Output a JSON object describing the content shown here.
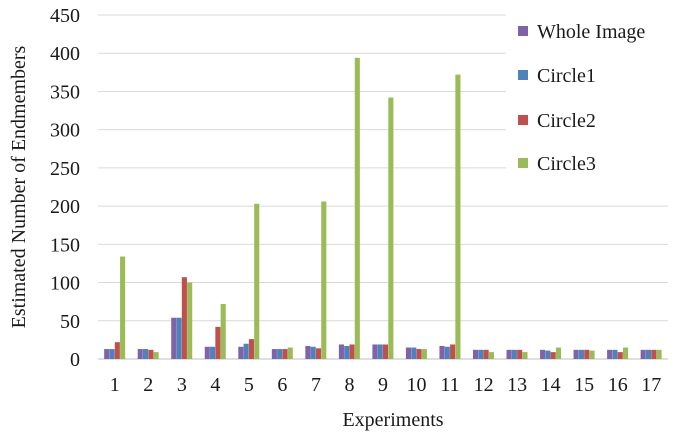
{
  "chart_data": {
    "type": "bar",
    "title": "",
    "xlabel": "Experiments",
    "ylabel": "Estimated Number of Endmembers",
    "ylim": [
      0,
      450
    ],
    "yticks": [
      0,
      50,
      100,
      150,
      200,
      250,
      300,
      350,
      400,
      450
    ],
    "grid": "horizontal",
    "legend_position": "right",
    "categories": [
      "1",
      "2",
      "3",
      "4",
      "5",
      "6",
      "7",
      "8",
      "9",
      "10",
      "11",
      "12",
      "13",
      "14",
      "15",
      "16",
      "17"
    ],
    "series": [
      {
        "name": "Whole Image",
        "color": "#7f63a8",
        "values": [
          13,
          13,
          54,
          16,
          16,
          13,
          17,
          19,
          19,
          15,
          17,
          12,
          12,
          12,
          12,
          12,
          12
        ]
      },
      {
        "name": "Circle1",
        "color": "#4f81bd",
        "values": [
          13,
          13,
          54,
          16,
          20,
          13,
          16,
          17,
          19,
          15,
          16,
          12,
          12,
          11,
          12,
          12,
          12
        ]
      },
      {
        "name": "Circle2",
        "color": "#c0504d",
        "values": [
          22,
          12,
          107,
          42,
          26,
          13,
          14,
          19,
          19,
          13,
          19,
          12,
          12,
          9,
          12,
          9,
          12
        ]
      },
      {
        "name": "Circle3",
        "color": "#9bbb59",
        "values": [
          134,
          9,
          100,
          72,
          203,
          15,
          206,
          394,
          342,
          13,
          372,
          9,
          9,
          15,
          11,
          15,
          12
        ]
      }
    ]
  }
}
